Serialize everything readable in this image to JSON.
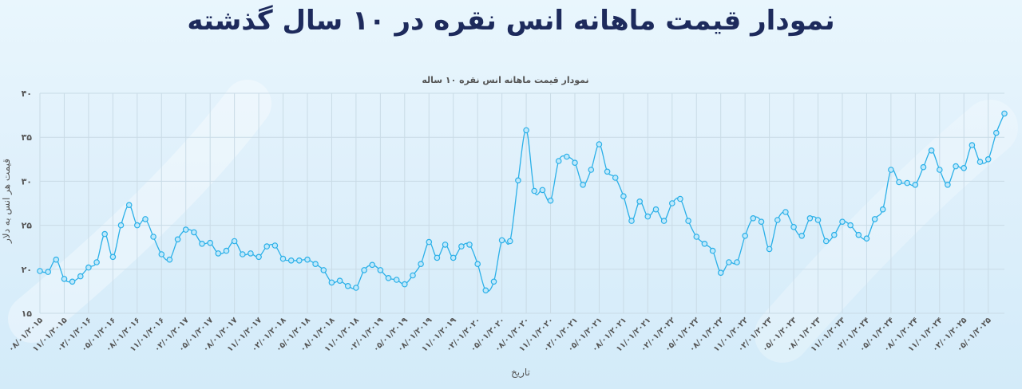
{
  "header": {
    "title": "نمودار قیمت ماهانه انس نقره در ۱۰ سال گذشته"
  },
  "colors": {
    "line": "#2bb0e8",
    "marker_fill": "#bfe8fb",
    "grid": "#c9dbe6",
    "title": "#1d2a5c"
  },
  "chart_data": {
    "type": "line",
    "title": "نمودار قیمت ماهانه انس نقره ۱۰ ساله",
    "xlabel": "تاریخ",
    "ylabel": "قیمت هر انس به دلار",
    "ylim": [
      15,
      40
    ],
    "yticks": [
      "۱۵",
      "۲۰",
      "۲۵",
      "۳۰",
      "۳۵",
      "۴۰"
    ],
    "ytick_values": [
      15,
      20,
      25,
      30,
      35,
      40
    ],
    "grid": true,
    "xtick_labels": [
      "۰۸/۰۱/۲۰۱۵",
      "۱۱/۰۱/۲۰۱۵",
      "۰۲/۰۱/۲۰۱۶",
      "۰۵/۰۱/۲۰۱۶",
      "۰۸/۰۱/۲۰۱۶",
      "۱۱/۰۱/۲۰۱۶",
      "۰۲/۰۱/۲۰۱۷",
      "۰۵/۰۱/۲۰۱۷",
      "۰۸/۰۱/۲۰۱۷",
      "۱۱/۰۱/۲۰۱۷",
      "۰۲/۰۱/۲۰۱۸",
      "۰۵/۰۱/۲۰۱۸",
      "۰۸/۰۱/۲۰۱۸",
      "۱۱/۰۱/۲۰۱۸",
      "۰۲/۰۱/۲۰۱۹",
      "۰۵/۰۱/۲۰۱۹",
      "۰۸/۰۱/۲۰۱۹",
      "۱۱/۰۱/۲۰۱۹",
      "۰۲/۰۱/۲۰۲۰",
      "۰۵/۰۱/۲۰۲۰",
      "۰۸/۰۱/۲۰۲۰",
      "۱۱/۰۱/۲۰۲۰",
      "۰۲/۰۱/۲۰۲۱",
      "۰۵/۰۱/۲۰۲۱",
      "۰۸/۰۱/۲۰۲۱",
      "۱۱/۰۱/۲۰۲۱",
      "۰۲/۰۱/۲۰۲۲",
      "۰۵/۰۱/۲۰۲۲",
      "۰۸/۰۱/۲۰۲۲",
      "۱۱/۰۱/۲۰۲۲",
      "۰۲/۰۱/۲۰۲۳",
      "۰۵/۰۱/۲۰۲۳",
      "۰۸/۰۱/۲۰۲۳",
      "۱۱/۰۱/۲۰۲۳",
      "۰۲/۰۱/۲۰۲۴",
      "۰۵/۰۱/۲۰۲۴",
      "۰۸/۰۱/۲۰۲۴",
      "۱۱/۰۱/۲۰۲۴",
      "۰۲/۰۱/۲۰۲۵",
      "۰۵/۰۱/۲۰۲۵"
    ],
    "series": [
      {
        "values": [
          19.8,
          19.7,
          21.1,
          18.9,
          18.6,
          19.2,
          20.2,
          20.8,
          24.0,
          21.4,
          25.0,
          27.3,
          25.0,
          25.7,
          23.7,
          21.7,
          21.1,
          23.4,
          24.5,
          24.2,
          22.9,
          23.0,
          21.8,
          22.1,
          23.2,
          21.7,
          21.8,
          21.4,
          22.6,
          22.7,
          21.2,
          21.0,
          21.0,
          21.1,
          20.6,
          19.9,
          18.5,
          18.7,
          18.1,
          17.9,
          19.9,
          20.5,
          19.9,
          19.0,
          18.8,
          18.3,
          19.3,
          20.6,
          23.1,
          21.3,
          22.8,
          21.3,
          22.6,
          22.8,
          20.6,
          17.6,
          18.6,
          23.3,
          23.2,
          30.1,
          35.8,
          28.9,
          29.0,
          27.8,
          32.3,
          32.8,
          32.1,
          29.6,
          31.3,
          34.2,
          31.1,
          30.4,
          28.3,
          25.5,
          27.7,
          26.0,
          26.8,
          25.5,
          27.5,
          28.0,
          25.5,
          23.7,
          22.9,
          22.1,
          19.6,
          20.8,
          20.8,
          23.8,
          25.8,
          25.4,
          22.3,
          25.6,
          26.5,
          24.8,
          23.8,
          25.8,
          25.6,
          23.2,
          23.9,
          25.4,
          25.0,
          23.9,
          23.5,
          25.7,
          26.8,
          31.3,
          29.9,
          29.8,
          29.6,
          31.6,
          33.5,
          31.3,
          29.6,
          31.7,
          31.5,
          34.1,
          32.2,
          32.5,
          35.5,
          37.7
        ]
      }
    ]
  }
}
